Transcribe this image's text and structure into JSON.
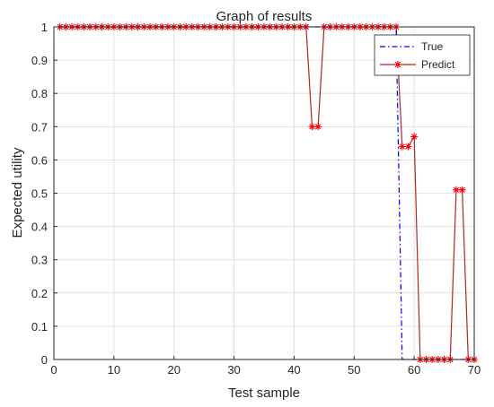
{
  "chart_data": {
    "type": "line",
    "title": "Graph of results",
    "xlabel": "Test sample",
    "ylabel": "Expected utility",
    "xlim": [
      0,
      70
    ],
    "ylim": [
      0,
      1
    ],
    "xticks": [
      0,
      10,
      20,
      30,
      40,
      50,
      60,
      70
    ],
    "yticks": [
      0,
      0.1,
      0.2,
      0.3,
      0.4,
      0.5,
      0.6,
      0.7,
      0.8,
      0.9,
      1
    ],
    "xtick_labels": [
      "0",
      "10",
      "20",
      "30",
      "40",
      "50",
      "60",
      "70"
    ],
    "ytick_labels": [
      "0",
      "0.1",
      "0.2",
      "0.3",
      "0.4",
      "0.5",
      "0.6",
      "0.7",
      "0.8",
      "0.9",
      "1"
    ],
    "grid": true,
    "legend_position": "top-right",
    "series": [
      {
        "name": "True",
        "color": "#0000ff",
        "line_style": "dash-dot",
        "marker": "none",
        "x": [
          1,
          57,
          58,
          70
        ],
        "y": [
          1,
          1,
          0,
          0
        ]
      },
      {
        "name": "Predict",
        "color": "#a52a2a",
        "marker_color": "#ff0000",
        "line_style": "solid",
        "marker": "asterisk",
        "x": [
          1,
          2,
          3,
          4,
          5,
          6,
          7,
          8,
          9,
          10,
          11,
          12,
          13,
          14,
          15,
          16,
          17,
          18,
          19,
          20,
          21,
          22,
          23,
          24,
          25,
          26,
          27,
          28,
          29,
          30,
          31,
          32,
          33,
          34,
          35,
          36,
          37,
          38,
          39,
          40,
          41,
          42,
          43,
          44,
          45,
          46,
          47,
          48,
          49,
          50,
          51,
          52,
          53,
          54,
          55,
          56,
          57,
          58,
          59,
          60,
          61,
          62,
          63,
          64,
          65,
          66,
          67,
          68,
          69,
          70
        ],
        "y": [
          1,
          1,
          1,
          1,
          1,
          1,
          1,
          1,
          1,
          1,
          1,
          1,
          1,
          1,
          1,
          1,
          1,
          1,
          1,
          1,
          1,
          1,
          1,
          1,
          1,
          1,
          1,
          1,
          1,
          1,
          1,
          1,
          1,
          1,
          1,
          1,
          1,
          1,
          1,
          1,
          1,
          1,
          0.7,
          0.7,
          1,
          1,
          1,
          1,
          1,
          1,
          1,
          1,
          1,
          1,
          1,
          1,
          1,
          0.64,
          0.64,
          0.67,
          0,
          0,
          0,
          0,
          0,
          0,
          0.51,
          0.51,
          0,
          0
        ]
      }
    ]
  }
}
